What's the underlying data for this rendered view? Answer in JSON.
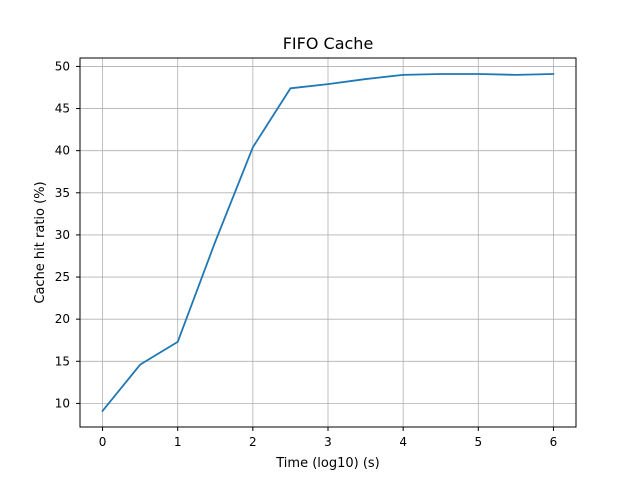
{
  "chart_data": {
    "type": "line",
    "title": "FIFO Cache",
    "xlabel": "Time (log10) (s)",
    "ylabel": "Cache hit ratio (%)",
    "xlim": [
      -0.3,
      6.3
    ],
    "ylim": [
      7.2,
      51.0
    ],
    "xticks": [
      0,
      1,
      2,
      3,
      4,
      5,
      6
    ],
    "yticks": [
      10,
      15,
      20,
      25,
      30,
      35,
      40,
      45,
      50
    ],
    "grid": true,
    "legend": false,
    "series": [
      {
        "color": "#1f77b4",
        "x": [
          0,
          0.5,
          1,
          1.5,
          2,
          2.5,
          3,
          3.5,
          4,
          4.5,
          5,
          5.5,
          6
        ],
        "y": [
          9.1,
          14.6,
          17.3,
          29.2,
          40.4,
          47.4,
          47.9,
          48.5,
          49.0,
          49.1,
          49.1,
          49.0,
          49.1
        ]
      }
    ]
  }
}
